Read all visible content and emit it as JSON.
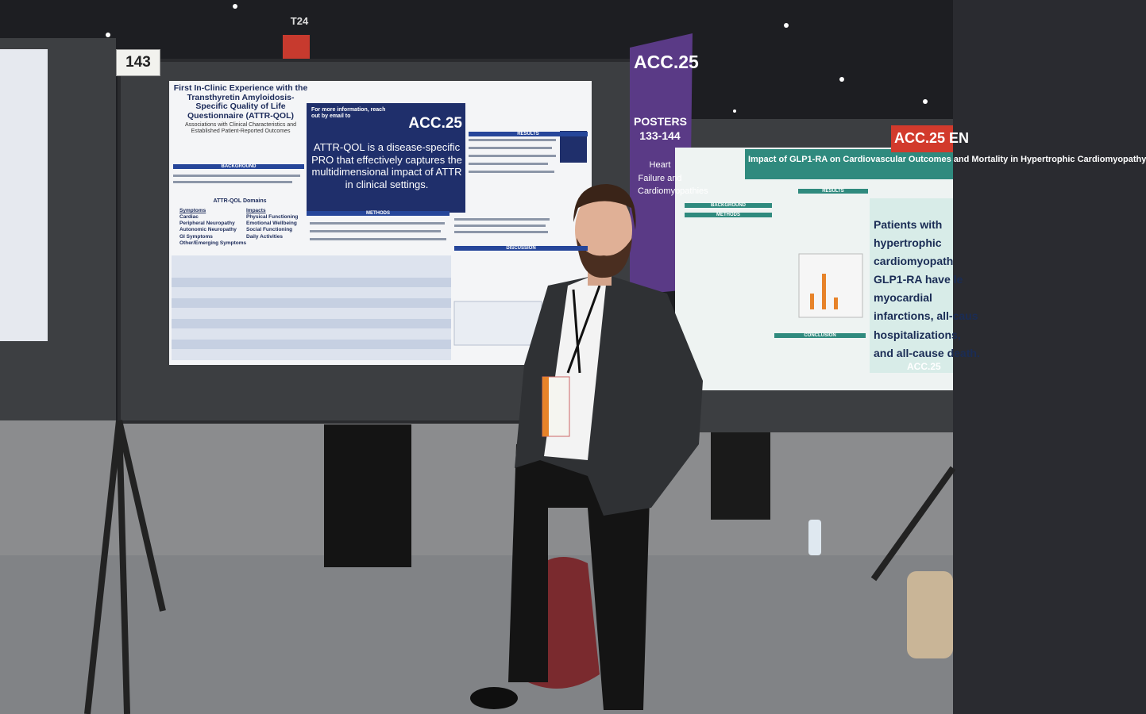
{
  "signs": {
    "booth_number": "143",
    "aisle": "T24",
    "banner": "ACC.25 EN"
  },
  "purple_sign": {
    "logo": "ACC.25",
    "title": "POSTERS",
    "range": "133-144",
    "topic": "Heart Failure and Cardiomyopathies"
  },
  "center_poster": {
    "title": "First In-Clinic Experience with the Transthyretin Amyloidosis-Specific Quality of Life Questionnaire (ATTR-QOL)",
    "subtitle": "Associations with Clinical Characteristics and Established Patient-Reported Outcomes",
    "contact": "For more information, reach out by email to",
    "logo": "ACC.25",
    "key_message": "ATTR-QOL is a disease-specific PRO that effectively captures the multidimensional impact of ATTR in clinical settings.",
    "sections": [
      "BACKGROUND",
      "METHODS",
      "RESULTS",
      "DISCUSSION"
    ],
    "domains_header": "ATTR-QOL Domains",
    "symptoms_header": "Symptoms",
    "symptoms": [
      "Cardiac",
      "Peripheral Neuropathy",
      "Autonomic Neuropathy",
      "GI Symptoms",
      "Other/Emerging Symptoms"
    ],
    "impacts_header": "Impacts",
    "impacts": [
      "Physical Functioning",
      "Emotional Wellbeing",
      "Social Functioning",
      "Daily Activities"
    ]
  },
  "right_poster": {
    "title": "Impact of GLP1-RA on Cardiovascular Outcomes and Mortality in Hypertrophic Cardiomyopathy",
    "sections": [
      "BACKGROUND",
      "METHODS",
      "RESULTS",
      "CONCLUSION"
    ],
    "key_message": [
      "Patients with",
      "hypertrophic",
      "cardiomyopath",
      "GLP1-RA have le",
      "myocardial",
      "infarctions, all-caus",
      "hospitalizations,",
      "and all-cause death."
    ],
    "logo": "ACC.25"
  }
}
